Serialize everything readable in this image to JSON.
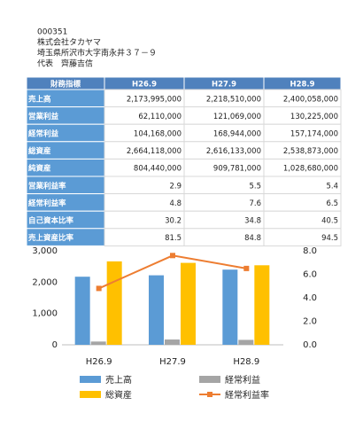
{
  "header": {
    "code": "000351",
    "company": "株式会社タカヤマ",
    "address": "埼玉県所沢市大字南永井３７－９",
    "representative": "代表　齊藤吉信"
  },
  "table": {
    "columns": [
      "財務指標",
      "H26.9",
      "H27.9",
      "H28.9"
    ],
    "rows": [
      [
        "売上高",
        "2,173,995,000",
        "2,218,510,000",
        "2,400,058,000"
      ],
      [
        "営業利益",
        "62,110,000",
        "121,069,000",
        "130,225,000"
      ],
      [
        "経常利益",
        "104,168,000",
        "168,944,000",
        "157,174,000"
      ],
      [
        "総資産",
        "2,664,118,000",
        "2,616,133,000",
        "2,538,873,000"
      ],
      [
        "純資産",
        "804,440,000",
        "909,781,000",
        "1,028,680,000"
      ],
      [
        "営業利益率",
        "2.9",
        "5.5",
        "5.4"
      ],
      [
        "経常利益率",
        "4.8",
        "7.6",
        "6.5"
      ],
      [
        "自己資本比率",
        "30.2",
        "34.8",
        "40.5"
      ],
      [
        "売上資産比率",
        "81.5",
        "84.8",
        "94.5"
      ]
    ]
  },
  "chart_data": {
    "type": "bar",
    "categories": [
      "H26.9",
      "H27.9",
      "H28.9"
    ],
    "series": [
      {
        "name": "売上高",
        "color": "#5b9bd5",
        "values": [
          2174,
          2219,
          2400
        ]
      },
      {
        "name": "経常利益",
        "color": "#a5a5a5",
        "values": [
          104,
          169,
          157
        ]
      },
      {
        "name": "総資産",
        "color": "#ffc000",
        "values": [
          2664,
          2616,
          2539
        ]
      },
      {
        "name": "経常利益率",
        "color": "#ed7d31",
        "type": "line",
        "axis": "y2",
        "values": [
          4.8,
          7.6,
          6.5
        ]
      }
    ],
    "ylim": [
      0,
      3000
    ],
    "yticks": [
      0,
      {
        "value": 1000,
        "label": "1,000"
      },
      {
        "value": 2000,
        "label": "2,000"
      },
      {
        "value": 3000,
        "label": "3,000"
      }
    ],
    "y2lim": [
      0,
      8
    ],
    "y2ticks": [
      {
        "value": 0,
        "label": "0.0"
      },
      {
        "value": 2,
        "label": "2.0"
      },
      {
        "value": 4,
        "label": "4.0"
      },
      {
        "value": 6,
        "label": "6.0"
      },
      {
        "value": 8,
        "label": "8.0"
      }
    ]
  }
}
